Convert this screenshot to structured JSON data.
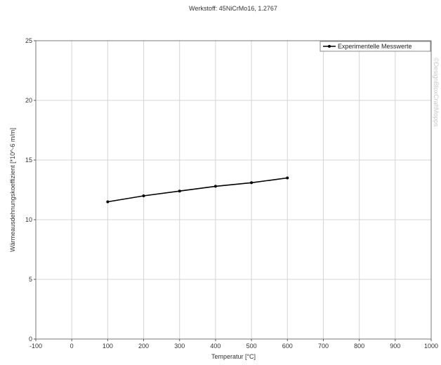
{
  "chart_data": {
    "type": "line",
    "title": "Werkstoff: 45NiCrMo16, 1.2767",
    "xlabel": "Temperatur [°C]",
    "ylabel": "Wärmeausdehnungskoeffizient [*10^-6 m/m]",
    "xlim": [
      -100,
      1000
    ],
    "ylim": [
      0,
      25
    ],
    "x_ticks": [
      -100,
      0,
      100,
      200,
      300,
      400,
      500,
      600,
      700,
      800,
      900,
      1000
    ],
    "y_ticks": [
      0,
      5,
      10,
      15,
      20,
      25
    ],
    "grid": true,
    "legend_position": "top-right",
    "series": [
      {
        "name": "Experimentelle Messwerte",
        "x": [
          100,
          200,
          300,
          400,
          500,
          600
        ],
        "y": [
          11.5,
          12.0,
          12.4,
          12.8,
          13.1,
          13.5
        ],
        "color": "#000000"
      }
    ],
    "watermark": "©DesignBloxCraftMopps"
  }
}
